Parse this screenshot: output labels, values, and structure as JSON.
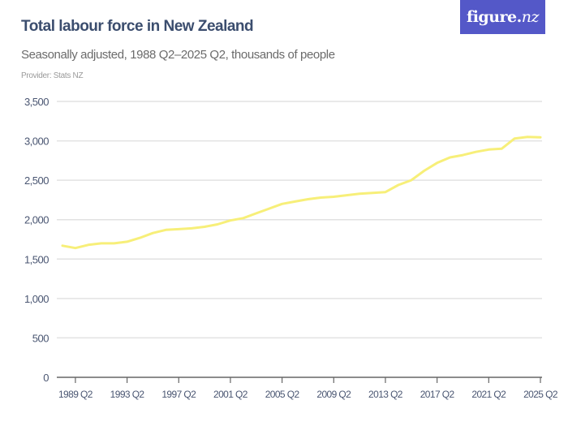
{
  "header": {
    "title": "Total labour force in New Zealand",
    "subtitle": "Seasonally adjusted, 1988 Q2–2025 Q2, thousands of people",
    "provider": "Provider: Stats NZ",
    "logo": {
      "main": "figure.",
      "accent": "nz"
    }
  },
  "colors": {
    "line": "#f7ef79",
    "grid": "#e2e2e2",
    "axis": "#666666",
    "logo_bg": "#5458c8",
    "title": "#3b4d6e"
  },
  "chart_data": {
    "type": "line",
    "title": "Total labour force in New Zealand",
    "subtitle": "Seasonally adjusted, 1988 Q2–2025 Q2, thousands of people",
    "xlabel": "",
    "ylabel": "thousands of people",
    "ylim": [
      0,
      3500
    ],
    "yticks": [
      0,
      500,
      1000,
      1500,
      2000,
      2500,
      3000,
      3500
    ],
    "ytick_labels": [
      "0",
      "500",
      "1,000",
      "1,500",
      "2,000",
      "2,500",
      "3,000",
      "3,500"
    ],
    "xticks": [
      "1989 Q2",
      "1993 Q2",
      "1997 Q2",
      "2001 Q2",
      "2005 Q2",
      "2009 Q2",
      "2013 Q2",
      "2017 Q2",
      "2021 Q2",
      "2025 Q2"
    ],
    "grid": true,
    "legend": "none",
    "series": [
      {
        "name": "Total labour force",
        "x": [
          1988.25,
          1989.25,
          1990.25,
          1991.25,
          1992.25,
          1993.25,
          1994.25,
          1995.25,
          1996.25,
          1997.25,
          1998.25,
          1999.25,
          2000.25,
          2001.25,
          2002.25,
          2003.25,
          2004.25,
          2005.25,
          2006.25,
          2007.25,
          2008.25,
          2009.25,
          2010.25,
          2011.25,
          2012.25,
          2013.25,
          2014.25,
          2015.25,
          2016.25,
          2017.25,
          2018.25,
          2019.25,
          2020.25,
          2021.25,
          2022.25,
          2023.25,
          2024.25,
          2025.25
        ],
        "values": [
          1670,
          1640,
          1680,
          1700,
          1700,
          1720,
          1770,
          1830,
          1870,
          1880,
          1890,
          1910,
          1940,
          1990,
          2020,
          2080,
          2140,
          2200,
          2230,
          2260,
          2280,
          2290,
          2310,
          2330,
          2340,
          2350,
          2440,
          2500,
          2620,
          2720,
          2790,
          2820,
          2860,
          2890,
          2900,
          3030,
          3050,
          3045
        ]
      }
    ]
  }
}
